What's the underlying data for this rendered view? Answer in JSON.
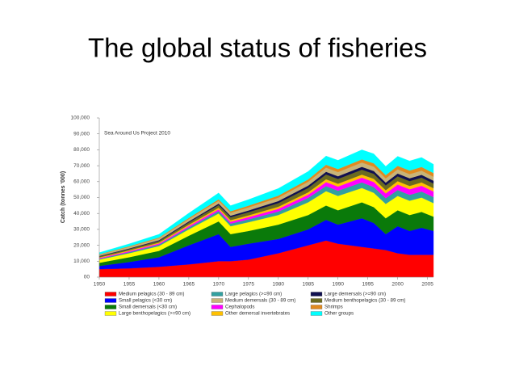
{
  "chart_data": {
    "type": "stacked_area",
    "title": "The global status of fisheries",
    "y_label": "Catch (tonnes '000)",
    "annotation": "Sea Around Us Project 2010",
    "x": [
      1950,
      1955,
      1960,
      1965,
      1970,
      1972,
      1975,
      1980,
      1985,
      1988,
      1990,
      1994,
      1996,
      1998,
      2000,
      2002,
      2004,
      2006
    ],
    "xlim": [
      1950,
      2006
    ],
    "xticks": [
      1950,
      1955,
      1960,
      1965,
      1970,
      1975,
      1980,
      1985,
      1990,
      1995,
      2000,
      2005
    ],
    "ylim": [
      0,
      100000
    ],
    "yticks": [
      {
        "value": 0,
        "label": "00"
      },
      {
        "value": 10000,
        "label": "10,000"
      },
      {
        "value": 20000,
        "label": "20,000"
      },
      {
        "value": 30000,
        "label": "30,000"
      },
      {
        "value": 40000,
        "label": "40,000"
      },
      {
        "value": 50000,
        "label": "50,000"
      },
      {
        "value": 60000,
        "label": "60,000"
      },
      {
        "value": 70000,
        "label": "70,000"
      },
      {
        "value": 80000,
        "label": "80,000"
      },
      {
        "value": 90000,
        "label": "90,000"
      },
      {
        "value": 100000,
        "label": "100,000"
      }
    ],
    "series": [
      {
        "name": "Medium pelagics (30 - 89 cm)",
        "color": "#ff0000",
        "values": [
          5000,
          5500,
          6500,
          8000,
          10000,
          10000,
          11000,
          15000,
          20000,
          23000,
          21000,
          19000,
          18000,
          17000,
          15000,
          14000,
          14000,
          14000
        ]
      },
      {
        "name": "Small pelagics (<30 cm)",
        "color": "#0000ff",
        "values": [
          2000,
          4000,
          6000,
          12000,
          17000,
          9000,
          10000,
          9000,
          10000,
          13000,
          12000,
          18000,
          16000,
          10000,
          17000,
          15000,
          17000,
          15000
        ]
      },
      {
        "name": "Small demersals (<30 cm)",
        "color": "#0a7a0a",
        "values": [
          2000,
          3000,
          4000,
          6000,
          8000,
          8000,
          8000,
          9000,
          9000,
          9000,
          9000,
          10000,
          10000,
          10000,
          10000,
          10000,
          10000,
          9000
        ]
      },
      {
        "name": "Large benthopelagics (>=90 cm)",
        "color": "#ffff00",
        "values": [
          2000,
          2500,
          3000,
          4000,
          5000,
          5000,
          5500,
          6000,
          8000,
          9000,
          9000,
          9000,
          9000,
          9000,
          9000,
          9000,
          9000,
          8500
        ]
      },
      {
        "name": "Large pelagics (>=90 cm)",
        "color": "#33a0a0",
        "values": [
          500,
          700,
          900,
          1200,
          1500,
          1600,
          1800,
          2200,
          2800,
          3200,
          3300,
          3500,
          3600,
          3600,
          3700,
          3700,
          3800,
          3800
        ]
      },
      {
        "name": "Cephalopods",
        "color": "#ff00ff",
        "values": [
          500,
          600,
          700,
          900,
          1100,
          1200,
          1400,
          1700,
          2000,
          2500,
          2600,
          3000,
          3200,
          3000,
          3500,
          3500,
          3600,
          3500
        ]
      },
      {
        "name": "Other demersal invertebrates",
        "color": "#ffc000",
        "values": [
          400,
          500,
          600,
          800,
          1000,
          1000,
          1100,
          1300,
          1500,
          1800,
          1800,
          1900,
          2000,
          2000,
          2100,
          2100,
          2100,
          2100
        ]
      },
      {
        "name": "Medium benthopelagics (30 - 89 cm)",
        "color": "#6b6b20",
        "values": [
          600,
          800,
          1000,
          1400,
          1700,
          1800,
          2000,
          2300,
          2700,
          3000,
          3000,
          3100,
          3100,
          3000,
          3000,
          3000,
          3000,
          2900
        ]
      },
      {
        "name": "Large demersals (>=90 cm)",
        "color": "#101050",
        "values": [
          300,
          400,
          500,
          700,
          900,
          1000,
          1100,
          1300,
          1500,
          1700,
          1700,
          1800,
          1800,
          1800,
          1800,
          1800,
          1800,
          1800
        ]
      },
      {
        "name": "Medium demersals (30 - 89 cm)",
        "color": "#c8b478",
        "values": [
          800,
          1000,
          1200,
          1500,
          1800,
          1800,
          1900,
          2100,
          2400,
          2600,
          2600,
          2700,
          2700,
          2600,
          2600,
          2600,
          2600,
          2500
        ]
      },
      {
        "name": "Shrimps",
        "color": "#e08a20",
        "values": [
          300,
          400,
          500,
          700,
          900,
          1000,
          1100,
          1300,
          1500,
          1800,
          1900,
          2000,
          2100,
          2100,
          2200,
          2300,
          2300,
          2300
        ]
      },
      {
        "name": "Other groups",
        "color": "#00ffff",
        "values": [
          1000,
          1500,
          2000,
          3000,
          4000,
          3500,
          3800,
          4500,
          5000,
          5500,
          5500,
          6000,
          6000,
          5500,
          6000,
          6000,
          6000,
          5500
        ]
      }
    ],
    "legend_order": [
      0,
      4,
      8,
      1,
      9,
      7,
      2,
      5,
      10,
      3,
      6,
      11
    ]
  }
}
